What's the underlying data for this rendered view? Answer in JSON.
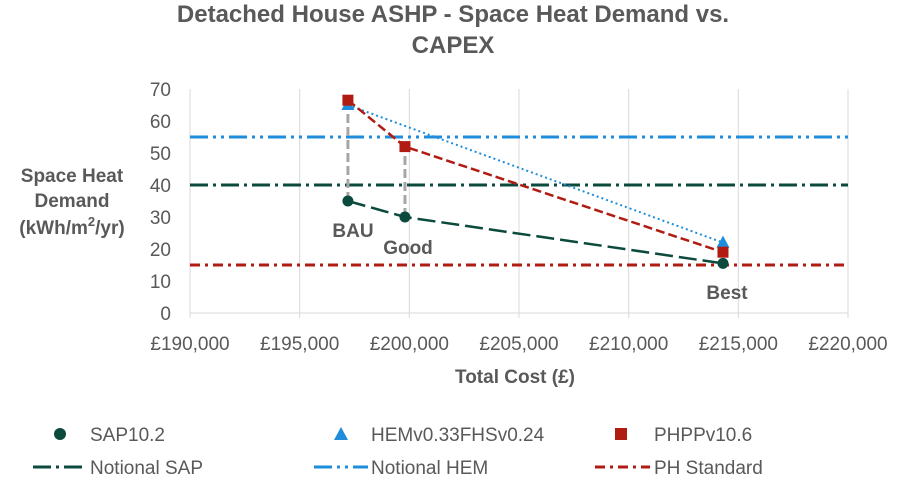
{
  "chart_data": {
    "type": "scatter",
    "title_lines": [
      "Detached House ASHP - Space Heat Demand vs.",
      "CAPEX"
    ],
    "xlabel": "Total Cost (£)",
    "ylabel_lines": [
      "Space Heat",
      "Demand",
      "(kWh/m",
      "2",
      "/yr)"
    ],
    "xlim": [
      190000,
      220000
    ],
    "ylim": [
      0,
      70
    ],
    "x_ticks": [
      190000,
      195000,
      200000,
      205000,
      210000,
      215000,
      220000
    ],
    "x_tick_labels": [
      "£190,000",
      "£195,000",
      "£200,000",
      "£205,000",
      "£210,000",
      "£215,000",
      "£220,000"
    ],
    "y_ticks": [
      0,
      10,
      20,
      30,
      40,
      50,
      60,
      70
    ],
    "y_tick_labels": [
      "0",
      "10",
      "20",
      "30",
      "40",
      "50",
      "60",
      "70"
    ],
    "grid": "vertical-lines",
    "legend_position": "bottom",
    "series": [
      {
        "name": "SAP10.2",
        "marker": "circle",
        "color": "#0b4a3c",
        "line": "long-dash",
        "points": [
          {
            "x": 197200,
            "y": 35
          },
          {
            "x": 199800,
            "y": 30
          },
          {
            "x": 214300,
            "y": 15.5
          }
        ]
      },
      {
        "name": "HEMv0.33FHSv0.24",
        "marker": "triangle",
        "color": "#1f8ddb",
        "line": "dotted",
        "points": [
          {
            "x": 197200,
            "y": 65
          },
          {
            "x": 214300,
            "y": 22
          }
        ]
      },
      {
        "name": "PHPPv10.6",
        "marker": "square",
        "color": "#b01c12",
        "line": "dashed",
        "points": [
          {
            "x": 197200,
            "y": 66.5
          },
          {
            "x": 199800,
            "y": 52
          },
          {
            "x": 214300,
            "y": 19
          }
        ]
      }
    ],
    "reference_lines": [
      {
        "name": "Notional SAP",
        "y": 40,
        "color": "#0b4a3c",
        "style": "long-dash-dot"
      },
      {
        "name": "Notional HEM",
        "y": 55,
        "color": "#1f8ddb",
        "style": "long-dash-dot-dot"
      },
      {
        "name": "PH Standard",
        "y": 15,
        "color": "#b01c12",
        "style": "dash-dot"
      }
    ],
    "connectors": [
      {
        "x": 197200,
        "y_from": 35,
        "y_to": 66.5,
        "color": "#a6a6a6"
      },
      {
        "x": 199800,
        "y_from": 30,
        "y_to": 52,
        "color": "#a6a6a6"
      }
    ],
    "annotations": [
      "BAU",
      "Good",
      "Best"
    ]
  }
}
